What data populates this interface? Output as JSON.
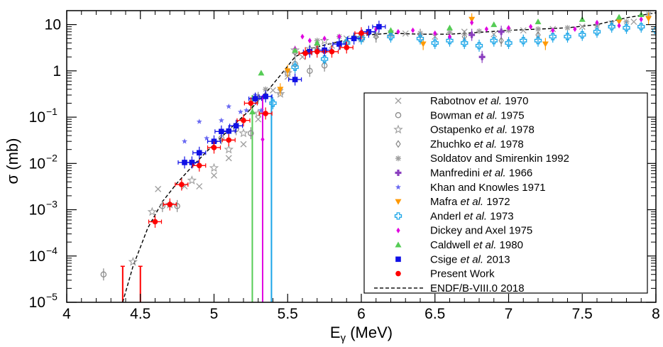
{
  "chart_data": {
    "type": "scatter",
    "title": "",
    "xlabel_main": "E",
    "xlabel_sub": "γ",
    "xlabel_unit": " (MeV)",
    "ylabel": "σ (mb)",
    "xlim": [
      4,
      8
    ],
    "ylim": [
      1e-05,
      20
    ],
    "yscale": "log",
    "x_ticks": [
      "4",
      "4.5",
      "5",
      "5.5",
      "6",
      "6.5",
      "7",
      "7.5",
      "8"
    ],
    "x_tick_values": [
      4,
      4.5,
      5,
      5.5,
      6,
      6.5,
      7,
      7.5,
      8
    ],
    "y_ticks": [
      {
        "base": "10",
        "exp": "−5",
        "value": 1e-05
      },
      {
        "base": "10",
        "exp": "−4",
        "value": 0.0001
      },
      {
        "base": "10",
        "exp": "−3",
        "value": 0.001
      },
      {
        "base": "10",
        "exp": "−2",
        "value": 0.01
      },
      {
        "base": "10",
        "exp": "−1",
        "value": 0.1
      },
      {
        "base": "1",
        "exp": "",
        "value": 1
      },
      {
        "base": "10",
        "exp": "",
        "value": 10
      }
    ],
    "legend_position": "right",
    "series": [
      {
        "name": "Rabotnov",
        "etal": true,
        "year": "1970",
        "marker": "x",
        "color": "#9e9e9e",
        "points": [
          [
            4.62,
            0.0028
          ],
          [
            4.8,
            0.0032
          ],
          [
            4.9,
            0.0032
          ],
          [
            5.0,
            0.0055
          ],
          [
            5.1,
            0.013
          ],
          [
            5.2,
            0.026
          ],
          [
            5.3,
            0.09
          ],
          [
            5.4,
            0.38
          ],
          [
            5.45,
            0.35
          ],
          [
            5.5,
            0.75
          ],
          [
            5.6,
            2.0
          ],
          [
            5.7,
            3.2
          ],
          [
            5.8,
            3.5
          ],
          [
            5.9,
            5.0
          ],
          [
            6.0,
            5.5
          ],
          [
            6.1,
            6.0
          ],
          [
            6.2,
            6.5
          ],
          [
            6.3,
            6.4
          ],
          [
            6.5,
            5.5
          ],
          [
            6.7,
            7.0
          ],
          [
            6.9,
            6.2
          ],
          [
            7.1,
            7.5
          ],
          [
            7.3,
            8.0
          ],
          [
            7.5,
            9.0
          ],
          [
            7.7,
            10.5
          ],
          [
            7.85,
            11.5
          ]
        ]
      },
      {
        "name": "Bowman",
        "etal": true,
        "year": "1975",
        "marker": "circle-open",
        "color": "#8a8a8a",
        "points": [
          [
            4.25,
            4e-05
          ],
          [
            4.65,
            0.0012
          ],
          [
            4.75,
            0.0012
          ],
          [
            5.05,
            0.035
          ],
          [
            5.15,
            0.055
          ],
          [
            5.25,
            0.045
          ],
          [
            5.55,
            1.4
          ],
          [
            5.65,
            1.0
          ],
          [
            5.75,
            1.3
          ]
        ]
      },
      {
        "name": "Ostapenko",
        "etal": true,
        "year": "1978",
        "marker": "star-open",
        "color": "#9e9e9e",
        "points": [
          [
            4.45,
            7.5e-05
          ],
          [
            4.58,
            0.0009
          ],
          [
            4.7,
            0.0013
          ],
          [
            4.85,
            0.0043
          ],
          [
            5.0,
            0.008
          ],
          [
            5.1,
            0.02
          ],
          [
            5.2,
            0.045
          ],
          [
            5.3,
            0.12
          ],
          [
            5.45,
            0.32
          ],
          [
            5.5,
            0.9
          ],
          [
            5.55,
            2.8
          ],
          [
            5.65,
            3.0
          ],
          [
            5.75,
            4.5
          ],
          [
            6.0,
            5.0
          ]
        ]
      },
      {
        "name": "Zhuchko",
        "etal": true,
        "year": "1978",
        "marker": "diamond-open",
        "color": "#808080",
        "points": [
          [
            5.3,
            0.26
          ],
          [
            5.35,
            0.3
          ],
          [
            5.55,
            2.5
          ],
          [
            5.7,
            3.0
          ],
          [
            5.9,
            4.0
          ],
          [
            6.1,
            5.5
          ],
          [
            6.4,
            6.0
          ],
          [
            6.7,
            5.5
          ],
          [
            6.95,
            4.5
          ],
          [
            7.2,
            6.0
          ]
        ]
      },
      {
        "name": "Soldatov and Smirenkin",
        "etal": false,
        "year": "1992",
        "marker": "asterisk",
        "color": "#a0a0a0",
        "points": [
          [
            5.35,
            0.4
          ],
          [
            5.5,
            1.0
          ],
          [
            5.7,
            4.5
          ],
          [
            5.85,
            5.5
          ],
          [
            6.0,
            5.8
          ],
          [
            6.2,
            6.0
          ],
          [
            6.4,
            6.5
          ],
          [
            6.6,
            6.8
          ],
          [
            6.8,
            7.2
          ],
          [
            7.0,
            7.5
          ],
          [
            7.2,
            8.0
          ],
          [
            7.4,
            8.5
          ],
          [
            7.6,
            9.5
          ],
          [
            7.8,
            11.5
          ],
          [
            7.95,
            17.0
          ]
        ]
      },
      {
        "name": "Manfredini",
        "etal": true,
        "year": "1966",
        "marker": "plus",
        "color": "#8b3fbf",
        "points": [
          [
            6.75,
            6.0
          ],
          [
            6.82,
            2.0
          ],
          [
            6.95,
            7.0
          ]
        ]
      },
      {
        "name": "Khan and Knowles",
        "etal": false,
        "year": "1971",
        "marker": "star",
        "color": "#6a6af2",
        "points": [
          [
            4.8,
            0.03
          ],
          [
            4.9,
            0.08
          ],
          [
            4.95,
            0.035
          ],
          [
            5.05,
            0.085
          ],
          [
            5.1,
            0.17
          ],
          [
            5.18,
            0.13
          ],
          [
            5.22,
            0.14
          ],
          [
            5.28,
            0.3
          ],
          [
            5.32,
            0.14
          ],
          [
            5.35,
            0.12
          ]
        ]
      },
      {
        "name": "Mafra",
        "etal": true,
        "year": "1972",
        "marker": "triangle-down",
        "color": "#ff9900",
        "points": [
          [
            5.45,
            0.4
          ],
          [
            5.5,
            1.0
          ],
          [
            6.42,
            3.8
          ],
          [
            6.75,
            13.0
          ],
          [
            7.25,
            3.8
          ],
          [
            7.75,
            11.5
          ],
          [
            7.95,
            13.5
          ]
        ]
      },
      {
        "name": "Anderl",
        "etal": true,
        "year": "1973",
        "marker": "plus-open",
        "color": "#19a5e8",
        "points": [
          [
            5.4,
            0.2
          ],
          [
            5.55,
            1.2
          ],
          [
            5.75,
            1.8
          ],
          [
            5.9,
            4.0
          ],
          [
            6.0,
            5.0
          ],
          [
            6.2,
            5.5
          ],
          [
            6.4,
            5.0
          ],
          [
            6.5,
            4.0
          ],
          [
            6.6,
            4.5
          ],
          [
            6.7,
            4.0
          ],
          [
            6.8,
            3.5
          ],
          [
            6.9,
            4.5
          ],
          [
            7.0,
            4.0
          ],
          [
            7.1,
            4.5
          ],
          [
            7.2,
            4.5
          ],
          [
            7.3,
            5.5
          ],
          [
            7.4,
            5.5
          ],
          [
            7.5,
            6.0
          ],
          [
            7.6,
            7.0
          ],
          [
            7.7,
            9.0
          ],
          [
            7.8,
            8.5
          ],
          [
            7.9,
            9.0
          ],
          [
            8.0,
            7.5
          ]
        ]
      },
      {
        "name": "Dickey and Axel",
        "etal": false,
        "year": "1975",
        "marker": "diamond",
        "color": "#e000e0",
        "points": [
          [
            5.33,
            0.033
          ],
          [
            5.55,
            3.0
          ],
          [
            5.6,
            5.5
          ],
          [
            5.65,
            4.5
          ],
          [
            5.75,
            5.0
          ],
          [
            5.85,
            5.5
          ],
          [
            6.0,
            7.0
          ],
          [
            6.1,
            8.0
          ],
          [
            6.25,
            7.0
          ],
          [
            6.35,
            7.5
          ],
          [
            6.5,
            6.5
          ],
          [
            6.6,
            5.5
          ],
          [
            6.75,
            11.0
          ],
          [
            6.85,
            8.0
          ],
          [
            7.0,
            8.5
          ],
          [
            7.15,
            9.0
          ],
          [
            7.3,
            7.5
          ],
          [
            7.45,
            8.0
          ],
          [
            7.6,
            11.0
          ],
          [
            7.75,
            9.5
          ],
          [
            7.9,
            13.0
          ]
        ]
      },
      {
        "name": "Caldwell",
        "etal": true,
        "year": "1980",
        "marker": "triangle-up",
        "color": "#55cc55",
        "points": [
          [
            5.26,
            0.13
          ],
          [
            5.32,
            0.9
          ],
          [
            5.55,
            2.8
          ],
          [
            5.7,
            4.0
          ],
          [
            5.95,
            5.5
          ],
          [
            6.2,
            7.5
          ],
          [
            6.6,
            8.5
          ],
          [
            6.9,
            10.0
          ],
          [
            7.2,
            11.5
          ],
          [
            7.5,
            13.0
          ],
          [
            7.75,
            14.5
          ],
          [
            7.9,
            16.5
          ]
        ]
      },
      {
        "name": "Csige",
        "etal": true,
        "year": "2013",
        "marker": "square",
        "color": "#1010e6",
        "points": [
          [
            4.8,
            0.0105
          ],
          [
            4.85,
            0.0105
          ],
          [
            4.9,
            0.017
          ],
          [
            5.0,
            0.03
          ],
          [
            5.05,
            0.049
          ],
          [
            5.1,
            0.05
          ],
          [
            5.15,
            0.065
          ],
          [
            5.28,
            0.25
          ],
          [
            5.35,
            0.28
          ],
          [
            5.55,
            0.65
          ],
          [
            5.65,
            2.6
          ],
          [
            5.75,
            2.8
          ],
          [
            5.85,
            3.8
          ],
          [
            5.95,
            5.0
          ],
          [
            6.05,
            7.0
          ],
          [
            6.12,
            9.0
          ]
        ]
      },
      {
        "name": "Present Work",
        "etal": false,
        "year": "",
        "marker": "circle",
        "color": "#ff0000",
        "points": [
          [
            4.6,
            0.00055
          ],
          [
            4.7,
            0.0013
          ],
          [
            4.78,
            0.0035
          ],
          [
            4.9,
            0.009
          ],
          [
            5.0,
            0.022
          ],
          [
            5.1,
            0.032
          ],
          [
            5.2,
            0.085
          ],
          [
            5.25,
            0.2
          ],
          [
            5.35,
            0.12
          ],
          [
            5.62,
            2.4
          ],
          [
            5.7,
            2.6
          ],
          [
            5.8,
            2.6
          ],
          [
            5.9,
            3.2
          ],
          [
            6.0,
            6.5
          ]
        ]
      }
    ],
    "reference_curve": {
      "name": "ENDF/B-VIII.0 2018",
      "style": "dashed",
      "color": "#000000",
      "points": [
        [
          4.38,
          1e-05
        ],
        [
          4.45,
          6e-05
        ],
        [
          4.55,
          0.0004
        ],
        [
          4.65,
          0.0015
        ],
        [
          4.75,
          0.0038
        ],
        [
          4.85,
          0.0085
        ],
        [
          4.95,
          0.018
        ],
        [
          5.05,
          0.037
        ],
        [
          5.15,
          0.075
        ],
        [
          5.25,
          0.15
        ],
        [
          5.35,
          0.33
        ],
        [
          5.45,
          0.8
        ],
        [
          5.55,
          2.0
        ],
        [
          5.65,
          3.0
        ],
        [
          5.75,
          3.6
        ],
        [
          5.85,
          4.3
        ],
        [
          5.95,
          5.2
        ],
        [
          6.05,
          6.0
        ],
        [
          6.2,
          6.5
        ],
        [
          6.4,
          6.2
        ],
        [
          6.6,
          6.2
        ],
        [
          6.8,
          6.8
        ],
        [
          7.0,
          7.5
        ],
        [
          7.2,
          8.0
        ],
        [
          7.4,
          8.5
        ],
        [
          7.6,
          10.0
        ],
        [
          7.8,
          14.0
        ],
        [
          8.0,
          18.0
        ]
      ]
    },
    "vertical_bars": [
      {
        "x": 5.26,
        "color": "#55cc55"
      },
      {
        "x": 5.33,
        "color": "#e000e0"
      },
      {
        "x": 5.39,
        "color": "#19a5e8"
      },
      {
        "x": 4.38,
        "color": "#ff0000"
      },
      {
        "x": 4.5,
        "color": "#ff0000"
      }
    ]
  }
}
